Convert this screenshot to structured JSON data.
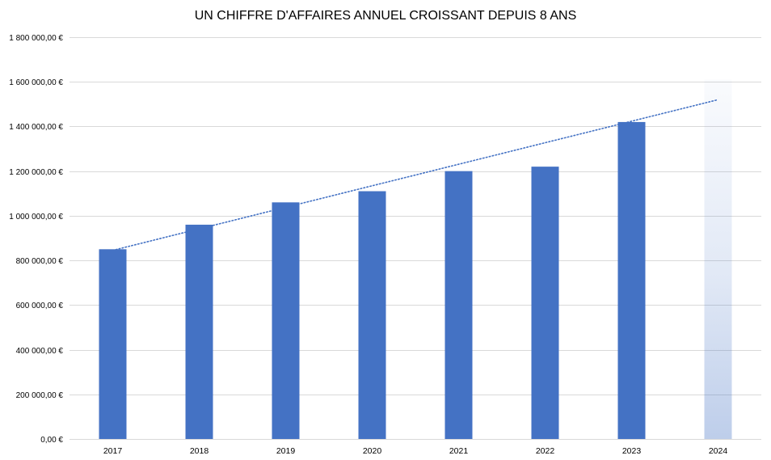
{
  "chart_data": {
    "type": "bar",
    "title": "UN CHIFFRE D'AFFAIRES ANNUEL CROISSANT DEPUIS 8 ANS",
    "xlabel": "",
    "ylabel": "",
    "categories": [
      "2017",
      "2018",
      "2019",
      "2020",
      "2021",
      "2022",
      "2023",
      "2024"
    ],
    "values": [
      850000,
      960000,
      1060000,
      1110000,
      1200000,
      1220000,
      1420000,
      1610000
    ],
    "bar_styles": [
      "solid",
      "solid",
      "solid",
      "solid",
      "solid",
      "solid",
      "solid",
      "gradient-projection"
    ],
    "ylim": [
      0,
      1800000
    ],
    "yticks": [
      0,
      200000,
      400000,
      600000,
      800000,
      1000000,
      1200000,
      1400000,
      1600000,
      1800000
    ],
    "ytick_labels": [
      "0,00 €",
      "200 000,00 €",
      "400 000,00 €",
      "600 000,00 €",
      "800 000,00 €",
      "1 000 000,00 €",
      "1 200 000,00 €",
      "1 400 000,00 €",
      "1 600 000,00 €",
      "1 800 000,00 €"
    ],
    "trendline": {
      "style": "dotted",
      "from": {
        "x": "2017",
        "y": 845000
      },
      "to": {
        "x": "2024",
        "y": 1520000
      }
    },
    "grid": true,
    "legend": "none",
    "colors": {
      "bar": "#4472C4",
      "grid": "#D9D9D9",
      "trend": "#4472C4"
    }
  }
}
